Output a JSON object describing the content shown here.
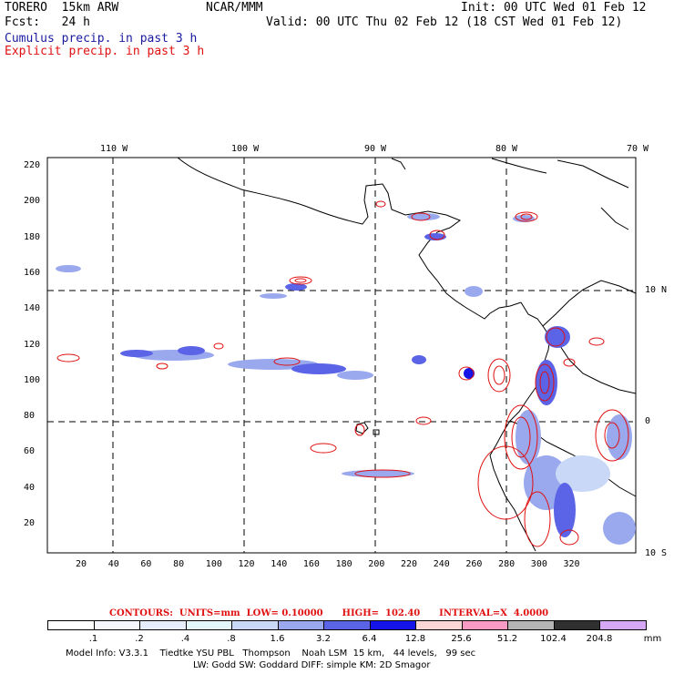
{
  "header": {
    "model": "TORERO  15km ARW",
    "org": "NCAR/MMM",
    "init": "Init: 00 UTC Wed 01 Feb 12",
    "fcst": "Fcst:   24 h",
    "valid": "Valid: 00 UTC Thu 02 Feb 12 (18 CST Wed 01 Feb 12)",
    "field1": "Cumulus precip. in past 3 h",
    "field2": "Explicit precip. in past 3 h"
  },
  "map": {
    "lon_labels": [
      "110 W",
      "100 W",
      "90 W",
      "80 W",
      "70 W"
    ],
    "lat_labels": [
      "10 N",
      "0",
      "10 S"
    ],
    "y_ticks": [
      "220",
      "200",
      "180",
      "160",
      "140",
      "120",
      "100",
      "80",
      "60",
      "40",
      "20"
    ],
    "x_ticks": [
      "20",
      "40",
      "60",
      "80",
      "100",
      "120",
      "140",
      "160",
      "180",
      "200",
      "220",
      "240",
      "260",
      "280",
      "300",
      "320"
    ]
  },
  "contours": {
    "label": "CONTOURS:  UNITS=mm  LOW= 0.10000      HIGH=  102.40      INTERVAL=X  4.0000"
  },
  "colorbar": {
    "colors": [
      "#ffffff",
      "#f4f6fc",
      "#e6eefc",
      "#e4f8fc",
      "#c9d8f6",
      "#9aa8ee",
      "#5b63e6",
      "#1414e8",
      "#fcd6d6",
      "#f79ac4",
      "#b4b4b4",
      "#303030",
      "#d4a8f4"
    ],
    "labels": [
      ".1",
      ".2",
      ".4",
      ".8",
      "1.6",
      "3.2",
      "6.4",
      "12.8",
      "25.6",
      "51.2",
      "102.4",
      "204.8",
      "mm"
    ]
  },
  "footer": {
    "line1": "Model Info: V3.3.1    Tiedtke YSU PBL   Thompson    Noah LSM  15 km,   44 levels,   99 sec",
    "line2": "LW: Godd SW: Goddard DIFF: simple KM: 2D Smagor"
  }
}
